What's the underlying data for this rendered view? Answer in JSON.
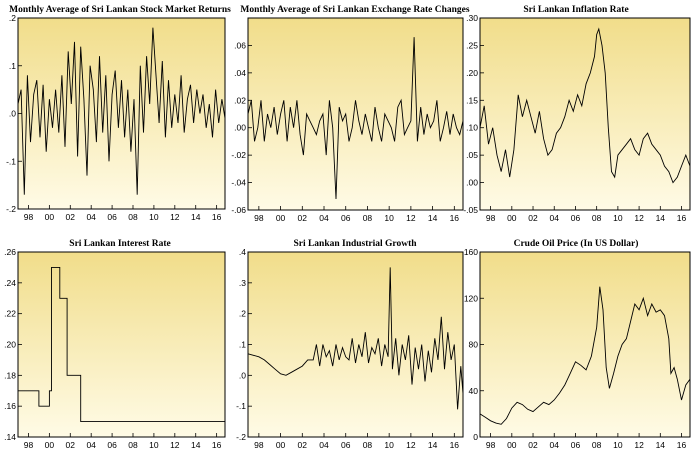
{
  "chart_data": [
    {
      "type": "line",
      "title": "Monthly Average of Sri Lankan Stock Market Returns",
      "x_range": [
        1997,
        2016.8
      ],
      "x_ticks": [
        1998,
        2000,
        2002,
        2004,
        2006,
        2008,
        2010,
        2012,
        2014,
        2016
      ],
      "x_tick_labels": [
        "98",
        "00",
        "02",
        "04",
        "06",
        "08",
        "10",
        "12",
        "14",
        "16"
      ],
      "ylim": [
        -0.2,
        0.2
      ],
      "y_ticks": [
        -0.2,
        -0.1,
        0.0,
        0.1,
        0.2
      ],
      "y_tick_labels": [
        "-.2",
        "-.1",
        ".0",
        ".1",
        ".2"
      ],
      "series": [
        {
          "x": [
            1997.0,
            1997.3,
            1997.6,
            1997.9,
            1998.2,
            1998.5,
            1998.8,
            1999.1,
            1999.4,
            1999.7,
            2000.0,
            2000.3,
            2000.6,
            2000.9,
            2001.2,
            2001.5,
            2001.8,
            2002.1,
            2002.4,
            2002.7,
            2003.0,
            2003.3,
            2003.6,
            2003.9,
            2004.2,
            2004.5,
            2004.8,
            2005.1,
            2005.4,
            2005.7,
            2006.0,
            2006.3,
            2006.6,
            2006.9,
            2007.2,
            2007.5,
            2007.8,
            2008.1,
            2008.4,
            2008.7,
            2009.0,
            2009.3,
            2009.6,
            2009.9,
            2010.2,
            2010.5,
            2010.8,
            2011.1,
            2011.4,
            2011.7,
            2012.0,
            2012.3,
            2012.6,
            2012.9,
            2013.2,
            2013.5,
            2013.8,
            2014.1,
            2014.4,
            2014.7,
            2015.0,
            2015.3,
            2015.6,
            2015.9,
            2016.2,
            2016.5,
            2016.8
          ],
          "y": [
            0.02,
            0.05,
            -0.17,
            0.08,
            -0.06,
            0.04,
            0.07,
            -0.05,
            0.06,
            -0.08,
            0.03,
            -0.03,
            0.05,
            -0.04,
            0.08,
            -0.07,
            0.13,
            0.02,
            0.15,
            -0.09,
            0.14,
            0.03,
            -0.13,
            0.1,
            0.05,
            -0.06,
            0.12,
            -0.04,
            0.08,
            -0.1,
            0.04,
            0.09,
            -0.03,
            0.07,
            -0.05,
            0.05,
            -0.08,
            0.03,
            -0.17,
            0.1,
            -0.04,
            0.12,
            0.02,
            0.18,
            0.08,
            -0.02,
            0.11,
            -0.05,
            0.07,
            -0.03,
            0.04,
            -0.02,
            0.08,
            -0.04,
            0.03,
            0.06,
            -0.02,
            0.05,
            0.0,
            0.04,
            -0.03,
            0.02,
            -0.05,
            0.05,
            -0.02,
            0.03,
            -0.01
          ]
        }
      ]
    },
    {
      "type": "line",
      "title": "Monthly Average of Sri Lankan Exchange Rate Changes",
      "x_range": [
        1997,
        2016.8
      ],
      "x_ticks": [
        1998,
        2000,
        2002,
        2004,
        2006,
        2008,
        2010,
        2012,
        2014,
        2016
      ],
      "x_tick_labels": [
        "98",
        "00",
        "02",
        "04",
        "06",
        "08",
        "10",
        "12",
        "14",
        "16"
      ],
      "ylim": [
        -0.06,
        0.08
      ],
      "y_ticks": [
        -0.06,
        -0.04,
        -0.02,
        0.0,
        0.02,
        0.04,
        0.06
      ],
      "y_tick_labels": [
        "-.06",
        "-.04",
        "-.02",
        ".00",
        ".02",
        ".04",
        ".06"
      ],
      "series": [
        {
          "x": [
            1997.0,
            1997.3,
            1997.6,
            1997.9,
            1998.2,
            1998.5,
            1998.8,
            1999.1,
            1999.4,
            1999.7,
            2000.0,
            2000.3,
            2000.6,
            2000.9,
            2001.2,
            2001.5,
            2001.8,
            2002.1,
            2002.4,
            2002.7,
            2003.0,
            2003.3,
            2003.6,
            2003.9,
            2004.2,
            2004.5,
            2004.8,
            2005.1,
            2005.4,
            2005.7,
            2006.0,
            2006.3,
            2006.6,
            2006.9,
            2007.2,
            2007.5,
            2007.8,
            2008.1,
            2008.4,
            2008.7,
            2009.0,
            2009.3,
            2009.6,
            2009.9,
            2010.2,
            2010.5,
            2010.8,
            2011.1,
            2011.4,
            2011.7,
            2012.0,
            2012.3,
            2012.6,
            2012.9,
            2013.2,
            2013.5,
            2013.8,
            2014.1,
            2014.4,
            2014.7,
            2015.0,
            2015.3,
            2015.6,
            2015.9,
            2016.2,
            2016.5,
            2016.8
          ],
          "y": [
            0.01,
            0.02,
            -0.01,
            0.0,
            0.02,
            -0.01,
            0.01,
            0.0,
            0.015,
            -0.005,
            0.01,
            0.02,
            -0.01,
            0.015,
            0.0,
            0.02,
            -0.005,
            -0.02,
            0.01,
            0.005,
            0.0,
            -0.005,
            0.005,
            0.01,
            -0.02,
            0.02,
            0.0,
            -0.052,
            0.015,
            0.005,
            0.01,
            -0.01,
            0.0,
            0.02,
            0.005,
            -0.005,
            0.01,
            0.0,
            -0.01,
            0.015,
            0.0,
            -0.01,
            0.01,
            0.005,
            0.0,
            -0.01,
            0.015,
            0.02,
            -0.005,
            0.0,
            0.005,
            0.066,
            -0.01,
            0.015,
            -0.005,
            0.01,
            0.0,
            0.005,
            0.02,
            -0.01,
            0.0,
            0.012,
            -0.005,
            0.01,
            0.0,
            -0.005,
            0.005
          ]
        }
      ]
    },
    {
      "type": "line",
      "title": "Sri Lankan Inflation Rate",
      "x_range": [
        1997,
        2016.8
      ],
      "x_ticks": [
        1998,
        2000,
        2002,
        2004,
        2006,
        2008,
        2010,
        2012,
        2014,
        2016
      ],
      "x_tick_labels": [
        "98",
        "00",
        "02",
        "04",
        "06",
        "08",
        "10",
        "12",
        "14",
        "16"
      ],
      "ylim": [
        -0.05,
        0.3
      ],
      "y_ticks": [
        -0.05,
        0.0,
        0.05,
        0.1,
        0.15,
        0.2,
        0.25,
        0.3
      ],
      "y_tick_labels": [
        "-.05",
        ".00",
        ".05",
        ".10",
        ".15",
        ".20",
        ".25",
        ".30"
      ],
      "series": [
        {
          "x": [
            1997.0,
            1997.4,
            1997.8,
            1998.2,
            1998.6,
            1999.0,
            1999.4,
            1999.8,
            2000.2,
            2000.6,
            2001.0,
            2001.4,
            2001.8,
            2002.2,
            2002.6,
            2003.0,
            2003.4,
            2003.8,
            2004.2,
            2004.6,
            2005.0,
            2005.4,
            2005.8,
            2006.2,
            2006.6,
            2007.0,
            2007.4,
            2007.8,
            2008.0,
            2008.2,
            2008.5,
            2008.8,
            2009.1,
            2009.4,
            2009.7,
            2010.0,
            2010.4,
            2010.8,
            2011.2,
            2011.6,
            2012.0,
            2012.4,
            2012.8,
            2013.2,
            2013.6,
            2014.0,
            2014.4,
            2014.8,
            2015.2,
            2015.6,
            2016.0,
            2016.4,
            2016.8
          ],
          "y": [
            0.1,
            0.14,
            0.07,
            0.1,
            0.05,
            0.02,
            0.06,
            0.01,
            0.06,
            0.16,
            0.12,
            0.15,
            0.12,
            0.09,
            0.13,
            0.08,
            0.05,
            0.06,
            0.09,
            0.1,
            0.12,
            0.15,
            0.13,
            0.16,
            0.14,
            0.18,
            0.2,
            0.23,
            0.27,
            0.28,
            0.25,
            0.2,
            0.1,
            0.02,
            0.01,
            0.05,
            0.06,
            0.07,
            0.08,
            0.06,
            0.05,
            0.08,
            0.09,
            0.07,
            0.06,
            0.05,
            0.03,
            0.02,
            0.0,
            0.01,
            0.03,
            0.05,
            0.03
          ]
        }
      ]
    },
    {
      "type": "line",
      "title": "Sri Lankan Interest Rate",
      "x_range": [
        1997,
        2016.8
      ],
      "x_ticks": [
        1998,
        2000,
        2002,
        2004,
        2006,
        2008,
        2010,
        2012,
        2014,
        2016
      ],
      "x_tick_labels": [
        "98",
        "00",
        "02",
        "04",
        "06",
        "08",
        "10",
        "12",
        "14",
        "16"
      ],
      "ylim": [
        0.14,
        0.26
      ],
      "y_ticks": [
        0.14,
        0.16,
        0.18,
        0.2,
        0.22,
        0.24,
        0.26
      ],
      "y_tick_labels": [
        ".14",
        ".16",
        ".18",
        ".20",
        ".22",
        ".24",
        ".26"
      ],
      "series": [
        {
          "x": [
            1997.0,
            1999.0,
            1999.0,
            2000.0,
            2000.0,
            2000.2,
            2000.2,
            2001.0,
            2001.0,
            2001.7,
            2001.7,
            2003.0,
            2003.0,
            2016.8
          ],
          "y": [
            0.17,
            0.17,
            0.16,
            0.16,
            0.17,
            0.17,
            0.25,
            0.25,
            0.23,
            0.23,
            0.18,
            0.18,
            0.15,
            0.15
          ]
        }
      ]
    },
    {
      "type": "line",
      "title": "Sri Lankan Industrial Growth",
      "x_range": [
        1997,
        2016.8
      ],
      "x_ticks": [
        1998,
        2000,
        2002,
        2004,
        2006,
        2008,
        2010,
        2012,
        2014,
        2016
      ],
      "x_tick_labels": [
        "98",
        "00",
        "02",
        "04",
        "06",
        "08",
        "10",
        "12",
        "14",
        "16"
      ],
      "ylim": [
        -0.2,
        0.4
      ],
      "y_ticks": [
        -0.2,
        -0.1,
        0.0,
        0.1,
        0.2,
        0.3,
        0.4
      ],
      "y_tick_labels": [
        "-.2",
        "-.1",
        ".0",
        ".1",
        ".2",
        ".3",
        ".4"
      ],
      "series": [
        {
          "x": [
            1997.0,
            1997.5,
            1998.0,
            1998.5,
            1999.0,
            1999.5,
            2000.0,
            2000.5,
            2001.0,
            2001.5,
            2002.0,
            2002.5,
            2003.0,
            2003.3,
            2003.6,
            2003.9,
            2004.2,
            2004.5,
            2004.8,
            2005.1,
            2005.4,
            2005.7,
            2006.0,
            2006.3,
            2006.6,
            2006.9,
            2007.2,
            2007.5,
            2007.8,
            2008.1,
            2008.4,
            2008.7,
            2009.0,
            2009.3,
            2009.6,
            2009.9,
            2010.1,
            2010.3,
            2010.6,
            2010.9,
            2011.2,
            2011.5,
            2011.8,
            2012.1,
            2012.4,
            2012.7,
            2013.0,
            2013.3,
            2013.6,
            2013.9,
            2014.2,
            2014.5,
            2014.8,
            2015.1,
            2015.4,
            2015.7,
            2016.0,
            2016.3,
            2016.6,
            2016.8
          ],
          "y": [
            0.07,
            0.065,
            0.06,
            0.05,
            0.035,
            0.02,
            0.005,
            0.0,
            0.01,
            0.02,
            0.03,
            0.05,
            0.05,
            0.1,
            0.03,
            0.1,
            0.06,
            0.08,
            0.03,
            0.1,
            0.05,
            0.09,
            0.06,
            0.05,
            0.12,
            0.04,
            0.1,
            0.06,
            0.14,
            0.04,
            0.09,
            0.07,
            0.12,
            0.03,
            0.1,
            0.06,
            0.35,
            0.02,
            0.12,
            0.0,
            0.1,
            0.05,
            0.13,
            -0.03,
            0.09,
            0.02,
            0.1,
            -0.02,
            0.08,
            0.01,
            0.12,
            0.05,
            0.19,
            0.02,
            0.14,
            0.05,
            0.1,
            -0.11,
            0.03,
            -0.06
          ]
        }
      ]
    },
    {
      "type": "line",
      "title": "Crude Oil Price (In US Dollar)",
      "x_range": [
        1997,
        2016.8
      ],
      "x_ticks": [
        1998,
        2000,
        2002,
        2004,
        2006,
        2008,
        2010,
        2012,
        2014,
        2016
      ],
      "x_tick_labels": [
        "98",
        "00",
        "02",
        "04",
        "06",
        "08",
        "10",
        "12",
        "14",
        "16"
      ],
      "ylim": [
        0,
        160
      ],
      "y_ticks": [
        0,
        40,
        80,
        120,
        160
      ],
      "y_tick_labels": [
        "0",
        "40",
        "80",
        "120",
        "160"
      ],
      "series": [
        {
          "x": [
            1997.0,
            1997.5,
            1998.0,
            1998.5,
            1999.0,
            1999.5,
            2000.0,
            2000.5,
            2001.0,
            2001.5,
            2002.0,
            2002.5,
            2003.0,
            2003.5,
            2004.0,
            2004.5,
            2005.0,
            2005.5,
            2006.0,
            2006.5,
            2007.0,
            2007.5,
            2008.0,
            2008.3,
            2008.6,
            2008.9,
            2009.2,
            2009.6,
            2010.0,
            2010.4,
            2010.8,
            2011.2,
            2011.6,
            2012.0,
            2012.4,
            2012.8,
            2013.2,
            2013.6,
            2014.0,
            2014.4,
            2014.8,
            2015.0,
            2015.3,
            2015.6,
            2016.0,
            2016.4,
            2016.8
          ],
          "y": [
            20,
            17,
            14,
            12,
            11,
            16,
            25,
            30,
            28,
            24,
            22,
            26,
            30,
            28,
            32,
            38,
            45,
            55,
            65,
            62,
            58,
            70,
            95,
            130,
            110,
            60,
            42,
            55,
            70,
            80,
            85,
            100,
            115,
            110,
            120,
            105,
            115,
            108,
            110,
            105,
            85,
            55,
            60,
            50,
            32,
            45,
            50
          ]
        }
      ]
    }
  ]
}
